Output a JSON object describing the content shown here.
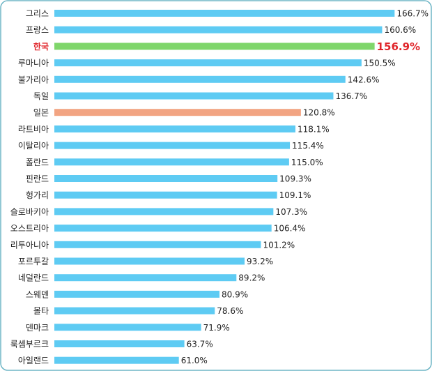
{
  "chart_data": {
    "type": "bar",
    "orientation": "horizontal",
    "categories": [
      "그리스",
      "프랑스",
      "한국",
      "루마니아",
      "불가리아",
      "독일",
      "일본",
      "라트비아",
      "이탈리아",
      "폴란드",
      "핀란드",
      "헝가리",
      "슬로바키아",
      "오스트리아",
      "리투아니아",
      "포르투갈",
      "네덜란드",
      "스웨덴",
      "몰타",
      "덴마크",
      "룩셈부르크",
      "아일랜드"
    ],
    "values": [
      166.7,
      160.6,
      156.9,
      150.5,
      142.6,
      136.7,
      120.8,
      118.1,
      115.4,
      115.0,
      109.3,
      109.1,
      107.3,
      106.4,
      101.2,
      93.2,
      89.2,
      80.9,
      78.6,
      71.9,
      63.7,
      61.0
    ],
    "value_labels": [
      "166.7%",
      "160.6%",
      "156.9%",
      "150.5%",
      "142.6%",
      "136.7%",
      "120.8%",
      "118.1%",
      "115.4%",
      "115.0%",
      "109.3%",
      "109.1%",
      "107.3%",
      "106.4%",
      "101.2%",
      "93.2%",
      "89.2%",
      "80.9%",
      "78.6%",
      "71.9%",
      "63.7%",
      "61.0%"
    ],
    "colors": [
      "#5ecbf3",
      "#5ecbf3",
      "#7fd66b",
      "#5ecbf3",
      "#5ecbf3",
      "#5ecbf3",
      "#f2a482",
      "#5ecbf3",
      "#5ecbf3",
      "#5ecbf3",
      "#5ecbf3",
      "#5ecbf3",
      "#5ecbf3",
      "#5ecbf3",
      "#5ecbf3",
      "#5ecbf3",
      "#5ecbf3",
      "#5ecbf3",
      "#5ecbf3",
      "#5ecbf3",
      "#5ecbf3",
      "#5ecbf3"
    ],
    "label_colors": [
      "#222",
      "#222",
      "#e0262b",
      "#222",
      "#222",
      "#222",
      "#222",
      "#222",
      "#222",
      "#222",
      "#222",
      "#222",
      "#222",
      "#222",
      "#222",
      "#222",
      "#222",
      "#222",
      "#222",
      "#222",
      "#222",
      "#222"
    ],
    "xlim": [
      0,
      170
    ]
  }
}
